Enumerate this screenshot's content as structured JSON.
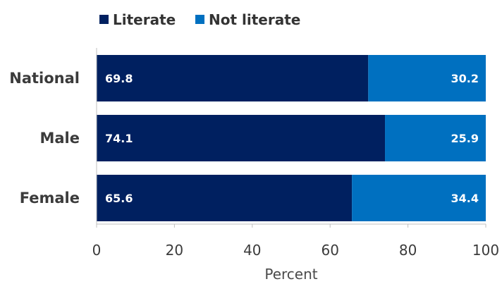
{
  "chart_data": {
    "type": "bar",
    "orientation": "horizontal",
    "stacked": true,
    "categories": [
      "National",
      "Male",
      "Female"
    ],
    "series": [
      {
        "name": "Literate",
        "values": [
          69.8,
          74.1,
          65.6
        ],
        "color": "#002060"
      },
      {
        "name": "Not literate",
        "values": [
          30.2,
          25.9,
          34.4
        ],
        "color": "#0070C0"
      }
    ],
    "xlabel": "Percent",
    "xlim": [
      0,
      100
    ],
    "xticks": [
      0,
      20,
      40,
      60,
      80,
      100
    ],
    "xtick_labels": [
      "0",
      "20",
      "40",
      "60",
      "80",
      "100"
    ],
    "data_labels": [
      [
        "69.8",
        "74.1",
        "65.6"
      ],
      [
        "30.2",
        "25.9",
        "34.4"
      ]
    ],
    "legend_position": "top-left",
    "grid": false
  }
}
